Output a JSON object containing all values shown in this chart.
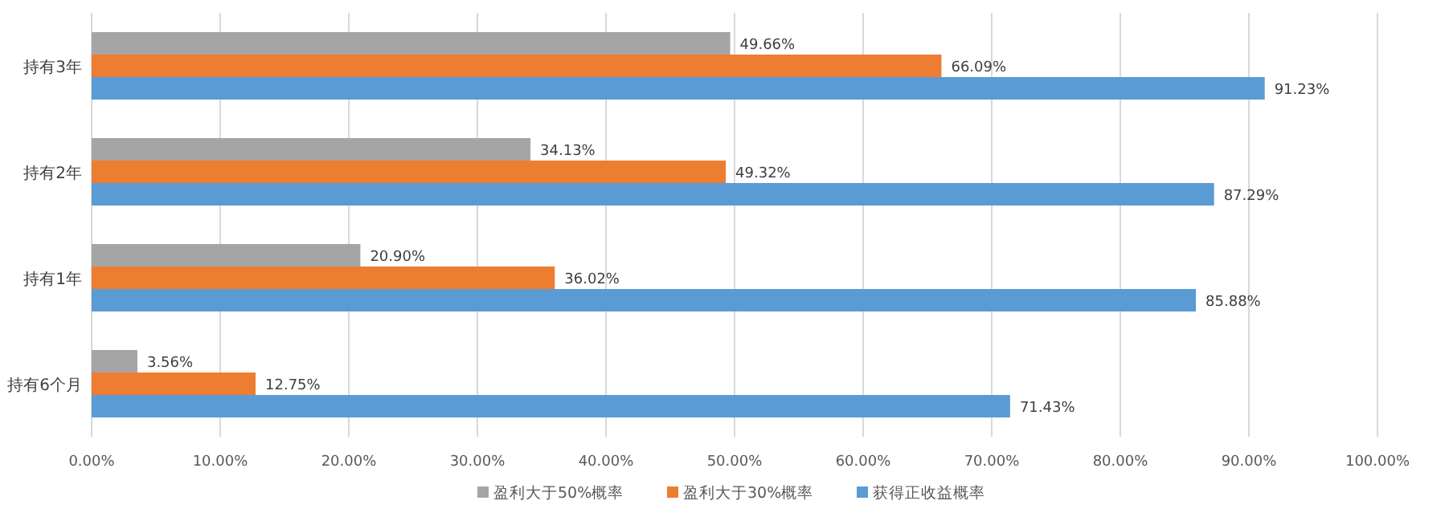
{
  "chart_data": {
    "type": "bar",
    "orientation": "horizontal",
    "categories": [
      "持有3年",
      "持有2年",
      "持有1年",
      "持有6个月"
    ],
    "series": [
      {
        "name": "盈利大于50%概率",
        "color": "#a5a5a5",
        "values": [
          49.66,
          34.13,
          20.9,
          3.56
        ],
        "value_labels": [
          "49.66%",
          "34.13%",
          "20.90%",
          "3.56%"
        ]
      },
      {
        "name": "盈利大于30%概率",
        "color": "#ed7d31",
        "values": [
          66.09,
          49.32,
          36.02,
          12.75
        ],
        "value_labels": [
          "66.09%",
          "49.32%",
          "36.02%",
          "12.75%"
        ]
      },
      {
        "name": "获得正收益概率",
        "color": "#5b9bd5",
        "values": [
          91.23,
          87.29,
          85.88,
          71.43
        ],
        "value_labels": [
          "91.23%",
          "87.29%",
          "85.88%",
          "71.43%"
        ]
      }
    ],
    "xlim": [
      0,
      100
    ],
    "xticks": [
      {
        "value": 0,
        "label": "0.00%"
      },
      {
        "value": 10,
        "label": "10.00%"
      },
      {
        "value": 20,
        "label": "20.00%"
      },
      {
        "value": 30,
        "label": "30.00%"
      },
      {
        "value": 40,
        "label": "40.00%"
      },
      {
        "value": 50,
        "label": "50.00%"
      },
      {
        "value": 60,
        "label": "60.00%"
      },
      {
        "value": 70,
        "label": "70.00%"
      },
      {
        "value": 80,
        "label": "80.00%"
      },
      {
        "value": 90,
        "label": "90.00%"
      },
      {
        "value": 100,
        "label": "100.00%"
      }
    ],
    "grid": "x",
    "legend": "bottom"
  }
}
